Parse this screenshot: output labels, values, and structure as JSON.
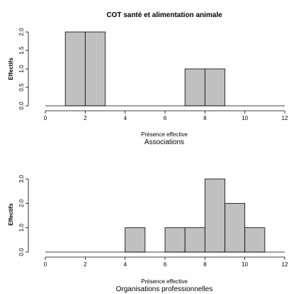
{
  "chart_data": [
    {
      "type": "bar",
      "title": "COT santé et alimentation animale",
      "xlabel": "Présence effective",
      "subtitle": "Associations",
      "ylabel": "Effectifs",
      "xlim": [
        0,
        12
      ],
      "ylim": [
        0,
        2
      ],
      "xticks": [
        "0",
        "2",
        "4",
        "6",
        "8",
        "10",
        "12"
      ],
      "yticks": [
        "0.0",
        "0.5",
        "1.0",
        "1.5",
        "2.0"
      ],
      "bins": [
        {
          "x0": 1,
          "x1": 2,
          "count": 2
        },
        {
          "x0": 2,
          "x1": 3,
          "count": 2
        },
        {
          "x0": 7,
          "x1": 8,
          "count": 1
        },
        {
          "x0": 8,
          "x1": 9,
          "count": 1
        }
      ],
      "bar_color": "#c0c0c0"
    },
    {
      "type": "bar",
      "title": "",
      "xlabel": "Présence effective",
      "subtitle": "Organisations professionnelles",
      "ylabel": "Effectifs",
      "xlim": [
        0,
        12
      ],
      "ylim": [
        0,
        3
      ],
      "xticks": [
        "0",
        "2",
        "4",
        "6",
        "8",
        "10",
        "12"
      ],
      "yticks": [
        "0.0",
        "1.0",
        "2.0",
        "3.0"
      ],
      "bins": [
        {
          "x0": 4,
          "x1": 5,
          "count": 1
        },
        {
          "x0": 6,
          "x1": 7,
          "count": 1
        },
        {
          "x0": 7,
          "x1": 8,
          "count": 1
        },
        {
          "x0": 8,
          "x1": 9,
          "count": 3
        },
        {
          "x0": 9,
          "x1": 10,
          "count": 2
        },
        {
          "x0": 10,
          "x1": 11,
          "count": 1
        }
      ],
      "bar_color": "#c0c0c0"
    }
  ]
}
